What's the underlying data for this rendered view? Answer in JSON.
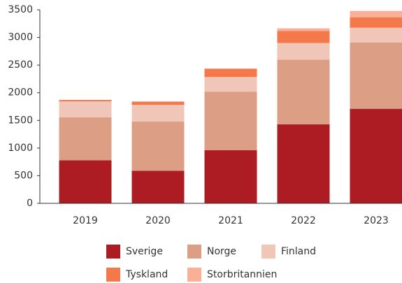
{
  "chart_data": {
    "type": "stacked_bar",
    "categories": [
      "2019",
      "2020",
      "2021",
      "2022",
      "2023"
    ],
    "series": [
      {
        "name": "Sverige",
        "color": "#ad1c22",
        "values": [
          780,
          590,
          960,
          1430,
          1710
        ]
      },
      {
        "name": "Norge",
        "color": "#dc9f86",
        "values": [
          775,
          890,
          1060,
          1170,
          1200
        ]
      },
      {
        "name": "Finland",
        "color": "#efc6b8",
        "values": [
          290,
          300,
          265,
          300,
          265
        ]
      },
      {
        "name": "Tyskland",
        "color": "#f4784a",
        "values": [
          25,
          60,
          150,
          215,
          190
        ]
      },
      {
        "name": "Storbritannien",
        "color": "#f9b096",
        "values": [
          0,
          0,
          0,
          50,
          115
        ]
      }
    ],
    "ylim": [
      0,
      3500
    ],
    "yticks": [
      0,
      500,
      1000,
      1500,
      2000,
      2500,
      3000,
      3500
    ],
    "legend": "bottom"
  }
}
